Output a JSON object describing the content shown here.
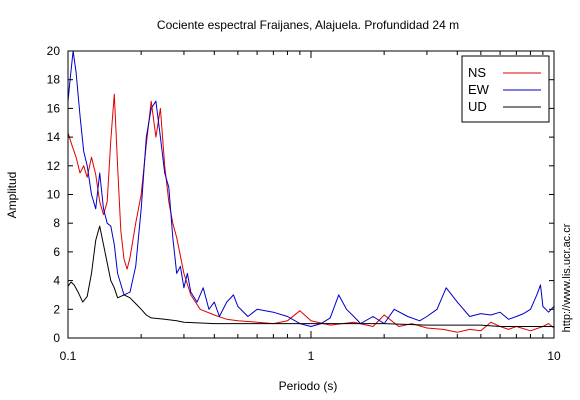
{
  "chart_data": {
    "type": "line",
    "title": "Cociente espectral Fraijanes, Alajuela. Profundidad 24 m",
    "xlabel": "Periodo (s)",
    "ylabel": "Amplitud",
    "x_scale": "log",
    "xlim": [
      0.1,
      10
    ],
    "ylim": [
      0,
      20
    ],
    "x_ticks": [
      {
        "value": 0.1,
        "label": "0.1"
      },
      {
        "value": 1,
        "label": "1"
      },
      {
        "value": 10,
        "label": "10"
      }
    ],
    "y_ticks": [
      0,
      2,
      4,
      6,
      8,
      10,
      12,
      14,
      16,
      18,
      20
    ],
    "grid": false,
    "legend_position": "top-right",
    "watermark": "http://www.lis.ucr.ac.cr",
    "series": [
      {
        "name": "NS",
        "color": "#e00000",
        "points": [
          [
            0.1,
            14.3
          ],
          [
            0.104,
            13.4
          ],
          [
            0.108,
            12.6
          ],
          [
            0.112,
            11.5
          ],
          [
            0.116,
            12.0
          ],
          [
            0.12,
            11.2
          ],
          [
            0.125,
            12.6
          ],
          [
            0.13,
            11.4
          ],
          [
            0.135,
            9.5
          ],
          [
            0.14,
            8.6
          ],
          [
            0.145,
            9.5
          ],
          [
            0.15,
            13.8
          ],
          [
            0.155,
            17.0
          ],
          [
            0.16,
            12.0
          ],
          [
            0.165,
            7.5
          ],
          [
            0.17,
            5.5
          ],
          [
            0.175,
            4.8
          ],
          [
            0.18,
            5.6
          ],
          [
            0.19,
            8.0
          ],
          [
            0.2,
            10.0
          ],
          [
            0.21,
            13.5
          ],
          [
            0.22,
            16.5
          ],
          [
            0.23,
            14.0
          ],
          [
            0.24,
            16.0
          ],
          [
            0.25,
            12.0
          ],
          [
            0.26,
            9.5
          ],
          [
            0.27,
            8.0
          ],
          [
            0.28,
            7.0
          ],
          [
            0.3,
            4.5
          ],
          [
            0.32,
            3.0
          ],
          [
            0.35,
            2.0
          ],
          [
            0.4,
            1.6
          ],
          [
            0.45,
            1.3
          ],
          [
            0.5,
            1.2
          ],
          [
            0.6,
            1.1
          ],
          [
            0.7,
            1.0
          ],
          [
            0.8,
            1.2
          ],
          [
            0.9,
            1.9
          ],
          [
            1.0,
            1.2
          ],
          [
            1.2,
            0.9
          ],
          [
            1.5,
            1.1
          ],
          [
            1.8,
            0.8
          ],
          [
            2.0,
            1.6
          ],
          [
            2.3,
            0.8
          ],
          [
            2.6,
            1.0
          ],
          [
            3.0,
            0.7
          ],
          [
            3.5,
            0.6
          ],
          [
            4.0,
            0.4
          ],
          [
            4.5,
            0.6
          ],
          [
            5.0,
            0.5
          ],
          [
            5.5,
            1.1
          ],
          [
            6.0,
            0.8
          ],
          [
            6.5,
            0.6
          ],
          [
            7.0,
            0.8
          ],
          [
            8.0,
            0.5
          ],
          [
            9.0,
            0.8
          ],
          [
            9.5,
            1.0
          ],
          [
            10.0,
            0.7
          ]
        ]
      },
      {
        "name": "EW",
        "color": "#0000c8",
        "points": [
          [
            0.1,
            16.5
          ],
          [
            0.102,
            18.0
          ],
          [
            0.105,
            20.0
          ],
          [
            0.108,
            18.5
          ],
          [
            0.112,
            15.5
          ],
          [
            0.116,
            13.0
          ],
          [
            0.12,
            12.0
          ],
          [
            0.125,
            10.0
          ],
          [
            0.13,
            9.0
          ],
          [
            0.135,
            11.5
          ],
          [
            0.14,
            9.0
          ],
          [
            0.145,
            8.0
          ],
          [
            0.15,
            7.8
          ],
          [
            0.155,
            6.5
          ],
          [
            0.16,
            4.5
          ],
          [
            0.17,
            3.0
          ],
          [
            0.18,
            3.2
          ],
          [
            0.19,
            5.0
          ],
          [
            0.2,
            9.0
          ],
          [
            0.21,
            14.0
          ],
          [
            0.22,
            16.0
          ],
          [
            0.23,
            16.5
          ],
          [
            0.24,
            14.0
          ],
          [
            0.25,
            11.5
          ],
          [
            0.26,
            10.5
          ],
          [
            0.27,
            7.0
          ],
          [
            0.28,
            4.5
          ],
          [
            0.29,
            5.0
          ],
          [
            0.3,
            3.5
          ],
          [
            0.31,
            4.5
          ],
          [
            0.32,
            3.2
          ],
          [
            0.34,
            2.5
          ],
          [
            0.36,
            3.5
          ],
          [
            0.38,
            2.0
          ],
          [
            0.4,
            2.5
          ],
          [
            0.42,
            1.5
          ],
          [
            0.45,
            2.5
          ],
          [
            0.48,
            3.0
          ],
          [
            0.5,
            2.2
          ],
          [
            0.55,
            1.5
          ],
          [
            0.6,
            2.0
          ],
          [
            0.7,
            1.8
          ],
          [
            0.8,
            1.5
          ],
          [
            0.9,
            1.0
          ],
          [
            1.0,
            0.8
          ],
          [
            1.1,
            1.0
          ],
          [
            1.2,
            1.4
          ],
          [
            1.3,
            3.0
          ],
          [
            1.4,
            2.0
          ],
          [
            1.5,
            1.5
          ],
          [
            1.6,
            1.0
          ],
          [
            1.8,
            1.5
          ],
          [
            2.0,
            1.0
          ],
          [
            2.2,
            2.0
          ],
          [
            2.5,
            1.5
          ],
          [
            2.8,
            1.2
          ],
          [
            3.0,
            1.5
          ],
          [
            3.3,
            2.0
          ],
          [
            3.6,
            3.5
          ],
          [
            4.0,
            2.5
          ],
          [
            4.5,
            1.5
          ],
          [
            5.0,
            1.7
          ],
          [
            5.5,
            1.6
          ],
          [
            6.0,
            1.8
          ],
          [
            6.5,
            1.3
          ],
          [
            7.0,
            1.5
          ],
          [
            7.5,
            1.7
          ],
          [
            8.0,
            2.0
          ],
          [
            8.5,
            3.0
          ],
          [
            8.8,
            3.7
          ],
          [
            9.0,
            2.2
          ],
          [
            9.5,
            1.8
          ],
          [
            10.0,
            2.2
          ]
        ]
      },
      {
        "name": "UD",
        "color": "#000000",
        "points": [
          [
            0.1,
            3.6
          ],
          [
            0.103,
            3.9
          ],
          [
            0.106,
            3.7
          ],
          [
            0.11,
            3.2
          ],
          [
            0.115,
            2.5
          ],
          [
            0.12,
            2.9
          ],
          [
            0.125,
            4.5
          ],
          [
            0.13,
            6.8
          ],
          [
            0.135,
            7.8
          ],
          [
            0.14,
            6.5
          ],
          [
            0.15,
            4.0
          ],
          [
            0.155,
            3.5
          ],
          [
            0.16,
            2.8
          ],
          [
            0.17,
            3.0
          ],
          [
            0.18,
            2.8
          ],
          [
            0.19,
            2.4
          ],
          [
            0.2,
            2.0
          ],
          [
            0.21,
            1.6
          ],
          [
            0.22,
            1.4
          ],
          [
            0.25,
            1.3
          ],
          [
            0.28,
            1.2
          ],
          [
            0.3,
            1.1
          ],
          [
            0.4,
            1.0
          ],
          [
            0.5,
            1.0
          ],
          [
            0.7,
            1.0
          ],
          [
            1.0,
            1.0
          ],
          [
            1.5,
            1.0
          ],
          [
            2.0,
            1.0
          ],
          [
            3.0,
            0.9
          ],
          [
            4.0,
            0.9
          ],
          [
            5.0,
            0.9
          ],
          [
            6.0,
            0.8
          ],
          [
            7.0,
            0.8
          ],
          [
            8.0,
            0.8
          ],
          [
            9.0,
            0.8
          ],
          [
            10.0,
            0.8
          ]
        ]
      }
    ]
  }
}
